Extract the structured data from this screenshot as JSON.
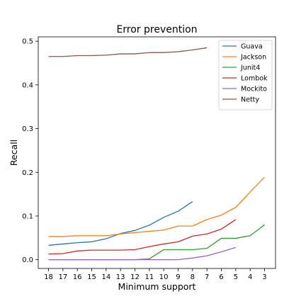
{
  "chart_data": {
    "type": "line",
    "title": "Error prevention",
    "xlabel": "Minimum support",
    "ylabel": "Recall",
    "categories": [
      "18",
      "17",
      "16",
      "15",
      "14",
      "13",
      "12",
      "11",
      "10",
      "9",
      "8",
      "7",
      "6",
      "5",
      "4",
      "3"
    ],
    "ylim": [
      -0.02,
      0.51
    ],
    "yticks": [
      "0.0",
      "0.1",
      "0.2",
      "0.3",
      "0.4",
      "0.5"
    ],
    "grid": false,
    "legend_position": "top-right",
    "series": [
      {
        "name": "Guava",
        "color": "#1f77b4",
        "values": [
          0.033,
          0.036,
          0.039,
          0.041,
          0.048,
          0.06,
          0.067,
          0.079,
          0.097,
          0.111,
          0.133,
          null,
          null,
          null,
          null,
          null
        ]
      },
      {
        "name": "Jackson",
        "color": "#ff7f0e",
        "values": [
          0.053,
          0.053,
          0.055,
          0.055,
          0.055,
          0.059,
          0.062,
          0.065,
          0.068,
          0.077,
          0.077,
          0.092,
          0.102,
          0.12,
          0.155,
          0.189
        ]
      },
      {
        "name": "Junit4",
        "color": "#2ca02c",
        "values": [
          0.0,
          0.0,
          0.0,
          0.0,
          0.0,
          0.0,
          0.0,
          0.002,
          0.023,
          0.023,
          0.023,
          0.026,
          0.049,
          0.049,
          0.055,
          0.08
        ]
      },
      {
        "name": "Lombok",
        "color": "#d62728",
        "values": [
          0.013,
          0.014,
          0.02,
          0.022,
          0.022,
          0.022,
          0.023,
          0.03,
          0.036,
          0.041,
          0.054,
          0.059,
          0.07,
          0.092,
          null,
          null
        ]
      },
      {
        "name": "Mockito",
        "color": "#9467bd",
        "values": [
          0.0,
          0.0,
          0.0,
          0.0,
          0.0,
          0.0,
          0.0,
          0.0,
          0.0,
          0.0,
          0.004,
          0.009,
          0.018,
          0.028,
          null,
          null
        ]
      },
      {
        "name": "Netty",
        "color": "#8c564b",
        "values": [
          0.465,
          0.465,
          0.467,
          0.467,
          0.468,
          0.471,
          0.471,
          0.474,
          0.474,
          0.476,
          0.48,
          0.485,
          null,
          null,
          null,
          null
        ]
      }
    ]
  }
}
